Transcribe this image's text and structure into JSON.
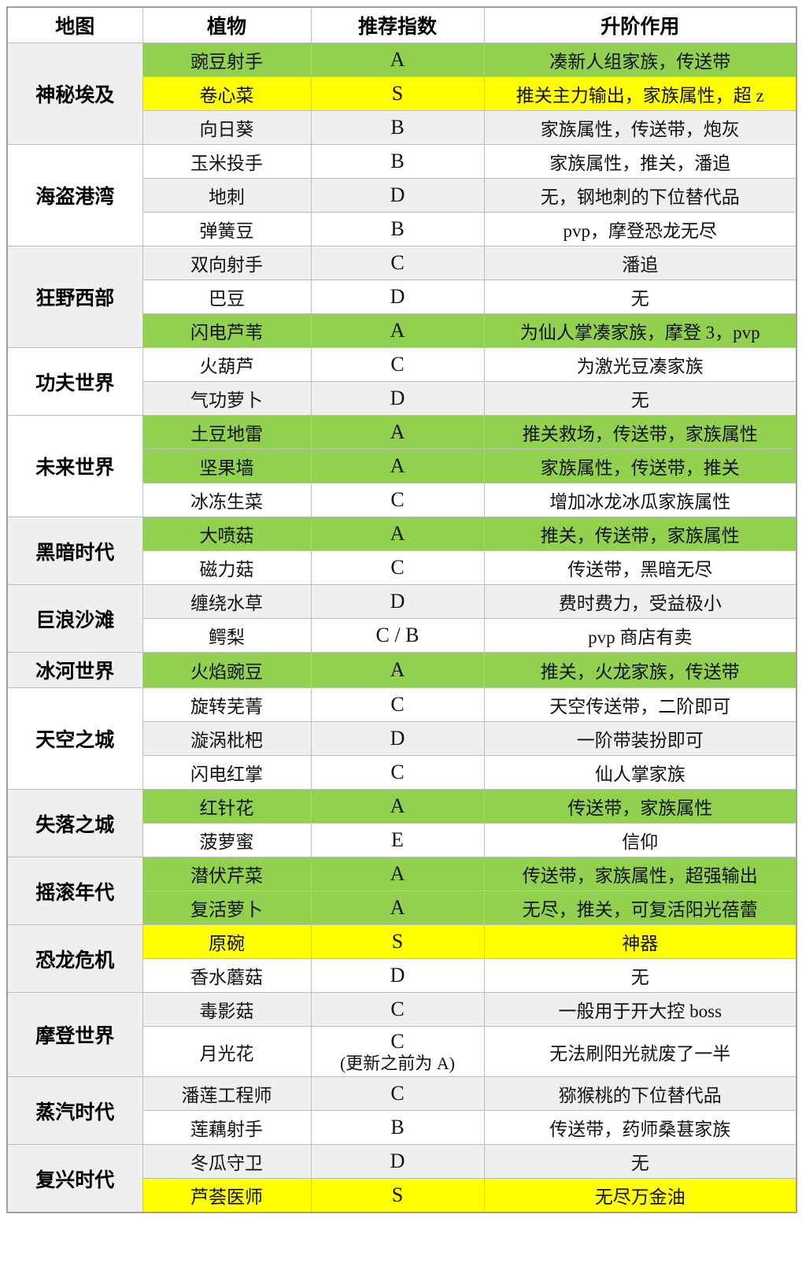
{
  "colors": {
    "highlight_green": "#92d050",
    "highlight_yellow": "#ffff00",
    "stripe_gray": "#efefef",
    "row_white": "#ffffff",
    "grid_border": "#bdbdbd",
    "text": "#000000"
  },
  "table": {
    "headers": [
      "地图",
      "植物",
      "推荐指数",
      "升阶作用"
    ],
    "sections": [
      {
        "map": "神秘埃及",
        "map_shade": "gray",
        "rows": [
          {
            "plant": "豌豆射手",
            "rating": "A",
            "effect": "凑新人组家族，传送带",
            "highlight": "green"
          },
          {
            "plant": "卷心菜",
            "rating": "S",
            "effect": "推关主力输出，家族属性，超 z",
            "highlight": "yellow"
          },
          {
            "plant": "向日葵",
            "rating": "B",
            "effect": "家族属性，传送带，炮灰",
            "highlight": "gray"
          }
        ]
      },
      {
        "map": "海盗港湾",
        "map_shade": "white",
        "rows": [
          {
            "plant": "玉米投手",
            "rating": "B",
            "effect": "家族属性，推关，潘追",
            "highlight": "white"
          },
          {
            "plant": "地刺",
            "rating": "D",
            "effect": "无，钢地刺的下位替代品",
            "highlight": "gray"
          },
          {
            "plant": "弹簧豆",
            "rating": "B",
            "effect": "pvp，摩登恐龙无尽",
            "highlight": "white"
          }
        ]
      },
      {
        "map": "狂野西部",
        "map_shade": "gray",
        "rows": [
          {
            "plant": "双向射手",
            "rating": "C",
            "effect": "潘追",
            "highlight": "gray"
          },
          {
            "plant": "巴豆",
            "rating": "D",
            "effect": "无",
            "highlight": "white"
          },
          {
            "plant": "闪电芦苇",
            "rating": "A",
            "effect": "为仙人掌凑家族，摩登 3，pvp",
            "highlight": "green"
          }
        ]
      },
      {
        "map": "功夫世界",
        "map_shade": "white",
        "rows": [
          {
            "plant": "火葫芦",
            "rating": "C",
            "effect": "为激光豆凑家族",
            "highlight": "white"
          },
          {
            "plant": "气功萝卜",
            "rating": "D",
            "effect": "无",
            "highlight": "gray"
          }
        ]
      },
      {
        "map": "未来世界",
        "map_shade": "white",
        "rows": [
          {
            "plant": "土豆地雷",
            "rating": "A",
            "effect": "推关救场，传送带，家族属性",
            "highlight": "green"
          },
          {
            "plant": "坚果墙",
            "rating": "A",
            "effect": "家族属性，传送带，推关",
            "highlight": "green"
          },
          {
            "plant": "冰冻生菜",
            "rating": "C",
            "effect": "增加冰龙冰瓜家族属性",
            "highlight": "white"
          }
        ]
      },
      {
        "map": "黑暗时代",
        "map_shade": "gray",
        "rows": [
          {
            "plant": "大喷菇",
            "rating": "A",
            "effect": "推关，传送带，家族属性",
            "highlight": "green"
          },
          {
            "plant": "磁力菇",
            "rating": "C",
            "effect": "传送带，黑暗无尽",
            "highlight": "white"
          }
        ]
      },
      {
        "map": "巨浪沙滩",
        "map_shade": "gray",
        "rows": [
          {
            "plant": "缠绕水草",
            "rating": "D",
            "effect": "费时费力，受益极小",
            "highlight": "gray"
          },
          {
            "plant": "鳄梨",
            "rating": "C / B",
            "effect": "pvp 商店有卖",
            "highlight": "white"
          }
        ]
      },
      {
        "map": "冰河世界",
        "map_shade": "gray",
        "rows": [
          {
            "plant": "火焰豌豆",
            "rating": "A",
            "effect": "推关，火龙家族，传送带",
            "highlight": "green"
          }
        ]
      },
      {
        "map": "天空之城",
        "map_shade": "white",
        "rows": [
          {
            "plant": "旋转芜菁",
            "rating": "C",
            "effect": "天空传送带，二阶即可",
            "highlight": "white"
          },
          {
            "plant": "漩涡枇杷",
            "rating": "D",
            "effect": "一阶带装扮即可",
            "highlight": "gray"
          },
          {
            "plant": "闪电红掌",
            "rating": "C",
            "effect": "仙人掌家族",
            "highlight": "white"
          }
        ]
      },
      {
        "map": "失落之城",
        "map_shade": "gray",
        "rows": [
          {
            "plant": "红针花",
            "rating": "A",
            "effect": "传送带，家族属性",
            "highlight": "green"
          },
          {
            "plant": "菠萝蜜",
            "rating": "E",
            "effect": "信仰",
            "highlight": "white"
          }
        ]
      },
      {
        "map": "摇滚年代",
        "map_shade": "gray",
        "rows": [
          {
            "plant": "潜伏芹菜",
            "rating": "A",
            "effect": "传送带，家族属性，超强输出",
            "highlight": "green"
          },
          {
            "plant": "复活萝卜",
            "rating": "A",
            "effect": "无尽，推关，可复活阳光蓓蕾",
            "highlight": "green"
          }
        ]
      },
      {
        "map": "恐龙危机",
        "map_shade": "gray",
        "rows": [
          {
            "plant": "原碗",
            "rating": "S",
            "effect": "神器",
            "highlight": "yellow"
          },
          {
            "plant": "香水蘑菇",
            "rating": "D",
            "effect": "无",
            "highlight": "white"
          }
        ]
      },
      {
        "map": "摩登世界",
        "map_shade": "gray",
        "rows": [
          {
            "plant": "毒影菇",
            "rating": "C",
            "effect": "一般用于开大控 boss",
            "highlight": "gray"
          },
          {
            "plant": "月光花",
            "rating": "C",
            "rating_note": "(更新之前为 A)",
            "effect": "无法刷阳光就废了一半",
            "highlight": "white"
          }
        ]
      },
      {
        "map": "蒸汽时代",
        "map_shade": "gray",
        "rows": [
          {
            "plant": "潘莲工程师",
            "rating": "C",
            "effect": "猕猴桃的下位替代品",
            "highlight": "gray"
          },
          {
            "plant": "莲藕射手",
            "rating": "B",
            "effect": "传送带，药师桑葚家族",
            "highlight": "white"
          }
        ]
      },
      {
        "map": "复兴时代",
        "map_shade": "gray",
        "rows": [
          {
            "plant": "冬瓜守卫",
            "rating": "D",
            "effect": "无",
            "highlight": "gray"
          },
          {
            "plant": "芦荟医师",
            "rating": "S",
            "effect": "无尽万金油",
            "highlight": "yellow"
          }
        ]
      }
    ]
  }
}
